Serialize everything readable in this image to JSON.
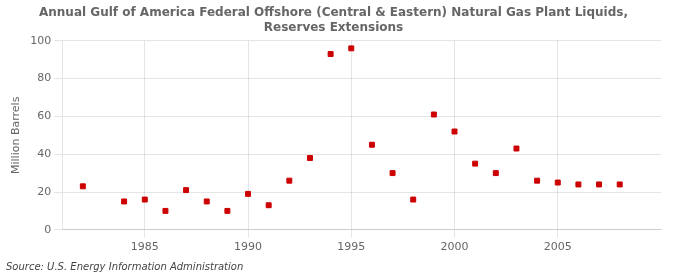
{
  "chart_data": {
    "type": "scatter",
    "title": "Annual Gulf of America Federal Offshore (Central & Eastern) Natural Gas Plant Liquids,\nReserves Extensions",
    "ylabel": "Million Barrels",
    "annotations": [
      "Source: U.S. Energy Information Administration"
    ],
    "x": [
      1982,
      1984,
      1985,
      1986,
      1987,
      1988,
      1989,
      1990,
      1991,
      1992,
      1993,
      1994,
      1995,
      1996,
      1997,
      1998,
      1999,
      2000,
      2001,
      2002,
      2003,
      2004,
      2005,
      2006,
      2007,
      2008
    ],
    "values": [
      23,
      15,
      16,
      10,
      21,
      15,
      10,
      19,
      13,
      26,
      38,
      93,
      96,
      45,
      30,
      16,
      61,
      52,
      35,
      30,
      43,
      26,
      25,
      24,
      24,
      24
    ],
    "color": "#cc0000",
    "marker": "square",
    "xlim": [
      1981,
      2010
    ],
    "xticks": [
      1985,
      1990,
      1995,
      2000,
      2005
    ],
    "ylim": [
      0,
      100
    ],
    "yticks": [
      0,
      20,
      40,
      60,
      80,
      100
    ],
    "grid": true
  }
}
